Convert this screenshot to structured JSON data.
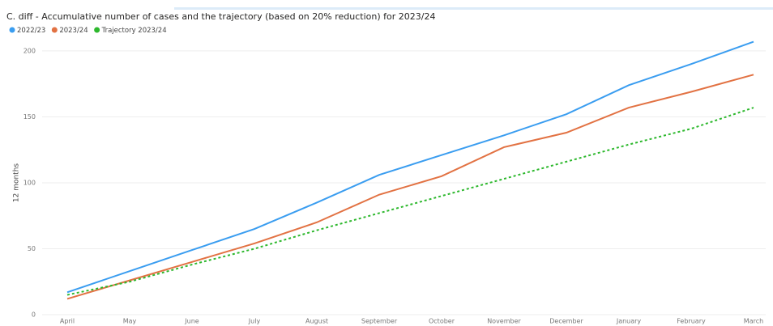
{
  "chart_data": {
    "type": "line",
    "title": "C. diff - Accumulative number of cases and the trajectory (based on 20% reduction) for 2023/24",
    "y_label": "12 months",
    "categories": [
      "April",
      "May",
      "June",
      "July",
      "August",
      "September",
      "October",
      "November",
      "December",
      "January",
      "February",
      "March"
    ],
    "series": [
      {
        "name": "2022/23",
        "color": "#3a9df0",
        "dash": false,
        "values": [
          17,
          33,
          49,
          65,
          85,
          106,
          121,
          136,
          152,
          174,
          190,
          207
        ]
      },
      {
        "name": "2023/24",
        "color": "#e27243",
        "dash": false,
        "values": [
          12,
          26,
          40,
          54,
          70,
          91,
          105,
          127,
          138,
          157,
          169,
          182
        ]
      },
      {
        "name": "Trajectory 2023/24",
        "color": "#2db82d",
        "dash": true,
        "values": [
          15,
          25,
          38,
          50,
          64,
          77,
          90,
          103,
          116,
          129,
          141,
          157
        ]
      }
    ],
    "ylim": [
      0,
      211
    ],
    "yticks": [
      0,
      50,
      100,
      150,
      200
    ],
    "grid": true,
    "legend": "top-left"
  }
}
